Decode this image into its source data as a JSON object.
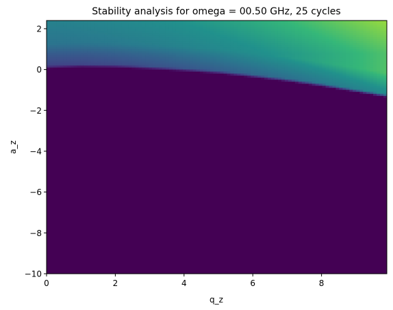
{
  "chart_data": {
    "type": "heatmap",
    "title": "Stability analysis for omega = 00.50 GHz, 25 cycles",
    "xlabel": "q_z",
    "ylabel": "a_z",
    "xlim": [
      0,
      9.9
    ],
    "ylim": [
      -10,
      2.4
    ],
    "x_ticks": [
      0,
      2,
      4,
      6,
      8
    ],
    "x_tick_labels": [
      "0",
      "2",
      "4",
      "6",
      "8"
    ],
    "y_ticks": [
      2,
      0,
      -2,
      -4,
      -6,
      -8,
      -10
    ],
    "y_tick_labels": [
      "2",
      "0",
      "−2",
      "−4",
      "−6",
      "−8",
      "−10"
    ],
    "colormap": "viridis",
    "background_color": "#440154",
    "grid": false,
    "legend": "none",
    "stable_region_boundary": {
      "q": [
        0,
        1,
        2,
        3,
        4,
        5,
        6,
        7,
        8,
        9,
        9.9
      ],
      "a": [
        0.05,
        0.12,
        0.1,
        0.02,
        -0.08,
        -0.2,
        -0.38,
        -0.58,
        -0.82,
        -1.1,
        -1.35
      ]
    }
  }
}
